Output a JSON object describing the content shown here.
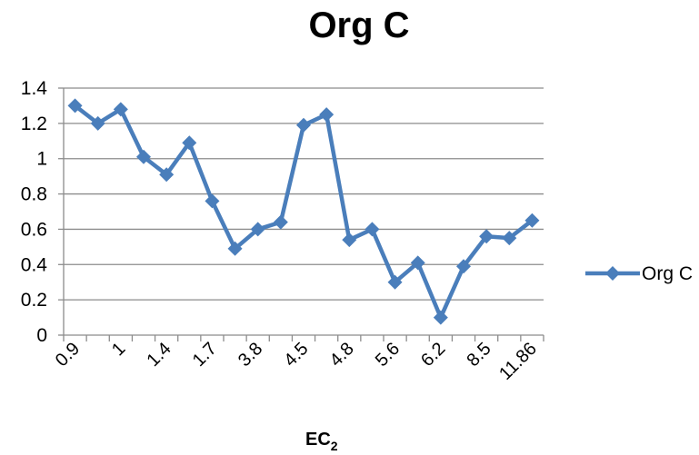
{
  "chart_data": {
    "type": "line",
    "title": "Org C",
    "xlabel": "EC",
    "xlabel_subscript": "2",
    "ylabel": "",
    "ylim": [
      0,
      1.4
    ],
    "y_ticks": [
      "0",
      "0.2",
      "0.4",
      "0.6",
      "0.8",
      "1",
      "1.2",
      "1.4"
    ],
    "x_tick_labels": [
      "0.9",
      "1",
      "1.4",
      "1.7",
      "3.8",
      "4.5",
      "4.8",
      "5.6",
      "6.2",
      "8.5",
      "11.86"
    ],
    "categories": [
      "0.9",
      "",
      "1",
      "",
      "1.4",
      "",
      "1.7",
      "",
      "3.8",
      "",
      "4.5",
      "",
      "4.8",
      "",
      "5.6",
      "",
      "6.2",
      "",
      "8.5",
      "",
      "11.86"
    ],
    "series": [
      {
        "name": "Org C",
        "color": "#4A7EBB",
        "marker": "diamond",
        "values": [
          1.3,
          1.2,
          1.28,
          1.01,
          0.91,
          1.09,
          0.76,
          0.49,
          0.6,
          0.64,
          1.19,
          1.25,
          0.54,
          0.6,
          0.3,
          0.41,
          0.1,
          0.39,
          0.56,
          0.55,
          0.65
        ]
      }
    ],
    "grid": true,
    "legend": "right"
  }
}
